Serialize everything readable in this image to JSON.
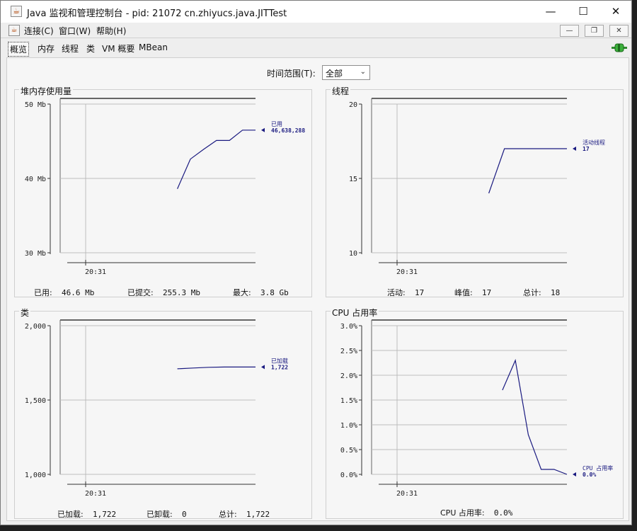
{
  "window": {
    "title": "Java 监视和管理控制台 - pid: 21072 cn.zhiyucs.java.JITTest",
    "icon": "java-cup-icon",
    "controls": {
      "minimize": "—",
      "maximize": "☐",
      "close": "✕"
    }
  },
  "menubar": {
    "items": [
      "连接(C)",
      "窗口(W)",
      "帮助(H)"
    ],
    "mdi_controls": {
      "minimize": "—",
      "restore": "❐",
      "close": "✕"
    }
  },
  "tabs": {
    "items": [
      "概览",
      "内存",
      "线程",
      "类",
      "VM 概要",
      "MBean"
    ],
    "active": "概览"
  },
  "time_range": {
    "label": "时间范围(T):",
    "value": "全部"
  },
  "colors": {
    "series": "#1a1a80",
    "grid": "#bdbdbd",
    "panel_bg": "#f6f6f6"
  },
  "panels": {
    "heap": {
      "title": "堆内存使用量",
      "stats": {
        "used_label": "已用:",
        "used_value": "46.6 Mb",
        "committed_label": "已提交:",
        "committed_value": "255.3 Mb",
        "max_label": "最大:",
        "max_value": "3.8 Gb"
      }
    },
    "threads": {
      "title": "线程",
      "stats": {
        "live_label": "活动:",
        "live_value": "17",
        "peak_label": "峰值:",
        "peak_value": "17",
        "total_label": "总计:",
        "total_value": "18"
      }
    },
    "classes": {
      "title": "类",
      "stats": {
        "loaded_label": "已加载:",
        "loaded_value": "1,722",
        "unloaded_label": "已卸载:",
        "unloaded_value": "0",
        "total_label": "总计:",
        "total_value": "1,722"
      }
    },
    "cpu": {
      "title": "CPU 占用率",
      "stats": {
        "usage_label": "CPU 占用率:",
        "usage_value": "0.0%"
      }
    }
  },
  "chart_data": [
    {
      "type": "line",
      "panel": "heap",
      "title": "堆内存使用量",
      "y_ticks": [
        "30 Mb",
        "40 Mb",
        "50 Mb"
      ],
      "ylim": [
        30,
        50
      ],
      "x_ticks": [
        "20:31"
      ],
      "series": [
        {
          "name": "已用",
          "value_label": "46,638,288",
          "values": [
            38.6,
            42.6,
            43.9,
            45.1,
            45.1,
            46.5,
            46.5
          ]
        }
      ]
    },
    {
      "type": "line",
      "panel": "threads",
      "title": "线程",
      "y_ticks": [
        "10",
        "15",
        "20"
      ],
      "ylim": [
        10,
        20
      ],
      "x_ticks": [
        "20:31"
      ],
      "series": [
        {
          "name": "活动线程",
          "value_label": "17",
          "values": [
            14,
            17,
            17,
            17,
            17,
            17
          ]
        }
      ]
    },
    {
      "type": "line",
      "panel": "classes",
      "title": "类",
      "y_ticks": [
        "1,000",
        "1,500",
        "2,000"
      ],
      "ylim": [
        1000,
        2000
      ],
      "x_ticks": [
        "20:31"
      ],
      "series": [
        {
          "name": "已加载",
          "value_label": "1,722",
          "values": [
            1710,
            1715,
            1720,
            1722,
            1722,
            1722
          ]
        }
      ]
    },
    {
      "type": "line",
      "panel": "cpu",
      "title": "CPU 占用率",
      "y_ticks": [
        "0.0%",
        "0.5%",
        "1.0%",
        "1.5%",
        "2.0%",
        "2.5%",
        "3.0%"
      ],
      "ylim": [
        0,
        3
      ],
      "x_ticks": [
        "20:31"
      ],
      "series": [
        {
          "name": "CPU 占用率",
          "value_label": "0.0%",
          "values": [
            1.7,
            2.3,
            0.8,
            0.1,
            0.1,
            0.0
          ]
        }
      ]
    }
  ]
}
